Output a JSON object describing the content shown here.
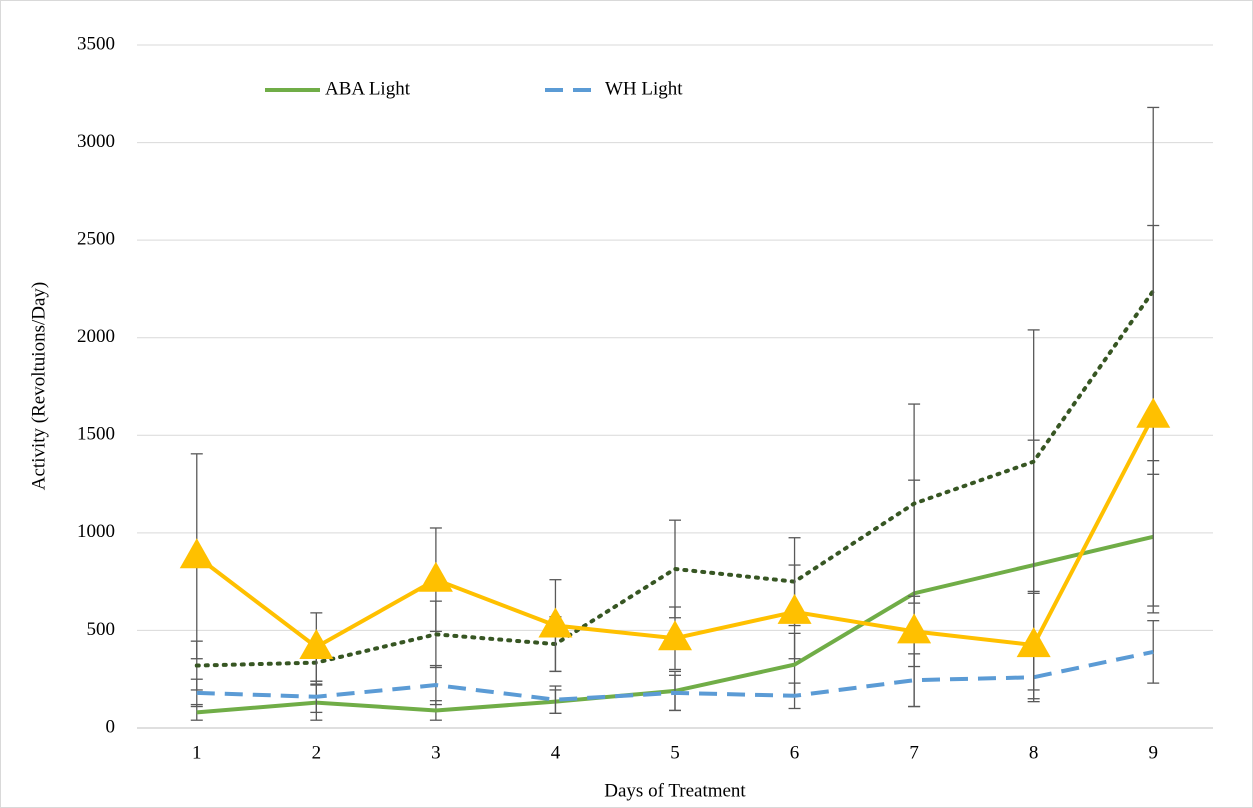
{
  "chart_data": {
    "type": "line",
    "x_label": "Days of Treatment",
    "y_label": "Activity (Revoltuions/Day)",
    "categories": [
      "1",
      "2",
      "3",
      "4",
      "5",
      "6",
      "7",
      "8",
      "9"
    ],
    "ylim": [
      0,
      3500
    ],
    "yticks": [
      0,
      500,
      1000,
      1500,
      2000,
      2500,
      3000,
      3500
    ],
    "grid": true,
    "series": [
      {
        "name": "ABA Light",
        "color": "#70ad47",
        "dash": "solid",
        "values": [
          80,
          130,
          90,
          135,
          190,
          325,
          690,
          835,
          980
        ],
        "errors": [
          40,
          90,
          50,
          60,
          100,
          160,
          580,
          640,
          390
        ]
      },
      {
        "name": "WH Light",
        "color": "#5b9bd5",
        "dash": "dashed",
        "values": [
          180,
          160,
          220,
          145,
          180,
          165,
          245,
          260,
          390
        ],
        "errors": [
          70,
          80,
          100,
          70,
          90,
          65,
          135,
          125,
          160
        ]
      },
      {
        "color": "#375623",
        "dash": "dotted",
        "values": [
          320,
          335,
          480,
          430,
          815,
          750,
          1150,
          1365,
          2240
        ],
        "errors": [
          125,
          110,
          170,
          140,
          250,
          225,
          510,
          675,
          940
        ]
      },
      {
        "color": "#ffc000",
        "dash": "solid",
        "marker": "triangle",
        "values": [
          880,
          415,
          760,
          525,
          460,
          595,
          495,
          425,
          1600
        ],
        "errors": [
          525,
          175,
          265,
          235,
          160,
          240,
          180,
          275,
          975
        ]
      }
    ]
  }
}
